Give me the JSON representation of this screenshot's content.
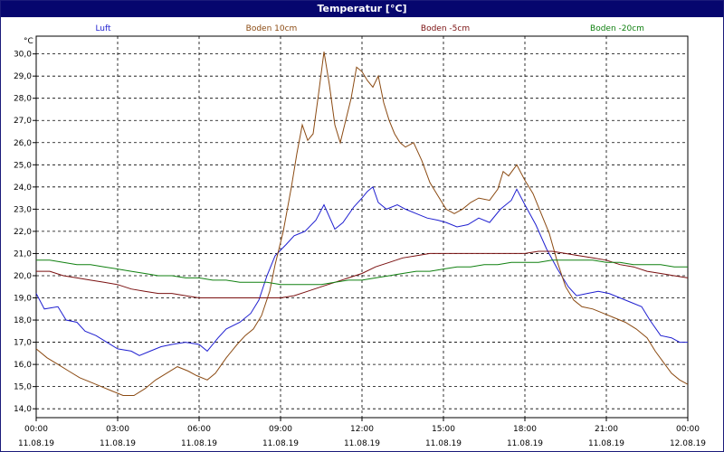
{
  "window": {
    "title": "Temperatur [°C]"
  },
  "chart_data": {
    "type": "line",
    "title": "Temperatur [°C]",
    "ylabel": "°C",
    "ylim": [
      13.6,
      30.8
    ],
    "yticks": [
      "14,0",
      "15,0",
      "16,0",
      "17,0",
      "18,0",
      "19,0",
      "20,0",
      "21,0",
      "22,0",
      "23,0",
      "24,0",
      "25,0",
      "26,0",
      "27,0",
      "28,0",
      "29,0",
      "30,0"
    ],
    "xlim": [
      0,
      24
    ],
    "xticks": [
      {
        "time": "00:00",
        "date": "11.08.19"
      },
      {
        "time": "03:00",
        "date": "11.08.19"
      },
      {
        "time": "06:00",
        "date": "11.08.19"
      },
      {
        "time": "09:00",
        "date": "11.08.19"
      },
      {
        "time": "12:00",
        "date": "11.08.19"
      },
      {
        "time": "15:00",
        "date": "11.08.19"
      },
      {
        "time": "18:00",
        "date": "11.08.19"
      },
      {
        "time": "21:00",
        "date": "11.08.19"
      },
      {
        "time": "00:00",
        "date": "12.08.19"
      }
    ],
    "grid": true,
    "legend_position": "top",
    "series": [
      {
        "name": "Luft",
        "color": "#1f1fd0",
        "points": [
          [
            0,
            19.2
          ],
          [
            0.3,
            18.5
          ],
          [
            0.8,
            18.6
          ],
          [
            1.1,
            18.0
          ],
          [
            1.5,
            17.9
          ],
          [
            1.8,
            17.5
          ],
          [
            2.2,
            17.3
          ],
          [
            2.6,
            17.0
          ],
          [
            3.0,
            16.7
          ],
          [
            3.5,
            16.6
          ],
          [
            3.8,
            16.4
          ],
          [
            4.2,
            16.6
          ],
          [
            4.6,
            16.8
          ],
          [
            5.0,
            16.9
          ],
          [
            5.5,
            17.0
          ],
          [
            6.0,
            16.9
          ],
          [
            6.3,
            16.6
          ],
          [
            6.7,
            17.2
          ],
          [
            7.0,
            17.6
          ],
          [
            7.5,
            17.9
          ],
          [
            7.9,
            18.3
          ],
          [
            8.2,
            18.9
          ],
          [
            8.5,
            20.0
          ],
          [
            8.8,
            20.9
          ],
          [
            9.2,
            21.4
          ],
          [
            9.5,
            21.8
          ],
          [
            9.9,
            22.0
          ],
          [
            10.3,
            22.5
          ],
          [
            10.6,
            23.2
          ],
          [
            11.0,
            22.1
          ],
          [
            11.3,
            22.4
          ],
          [
            11.7,
            23.1
          ],
          [
            12.0,
            23.5
          ],
          [
            12.2,
            23.8
          ],
          [
            12.4,
            24.0
          ],
          [
            12.6,
            23.3
          ],
          [
            12.9,
            23.0
          ],
          [
            13.3,
            23.2
          ],
          [
            13.6,
            23.0
          ],
          [
            14.0,
            22.8
          ],
          [
            14.4,
            22.6
          ],
          [
            14.8,
            22.5
          ],
          [
            15.1,
            22.4
          ],
          [
            15.5,
            22.2
          ],
          [
            15.9,
            22.3
          ],
          [
            16.3,
            22.6
          ],
          [
            16.7,
            22.4
          ],
          [
            17.1,
            23.0
          ],
          [
            17.5,
            23.4
          ],
          [
            17.7,
            23.9
          ],
          [
            18.0,
            23.2
          ],
          [
            18.4,
            22.3
          ],
          [
            18.8,
            21.2
          ],
          [
            19.2,
            20.3
          ],
          [
            19.6,
            19.5
          ],
          [
            19.9,
            19.1
          ],
          [
            20.3,
            19.2
          ],
          [
            20.7,
            19.3
          ],
          [
            21.1,
            19.2
          ],
          [
            21.5,
            19.0
          ],
          [
            21.9,
            18.8
          ],
          [
            22.3,
            18.6
          ],
          [
            22.6,
            18.0
          ],
          [
            23.0,
            17.3
          ],
          [
            23.4,
            17.2
          ],
          [
            23.7,
            17.0
          ],
          [
            24.0,
            17.0
          ]
        ]
      },
      {
        "name": "Boden 10cm",
        "color": "#8b4a12",
        "points": [
          [
            0,
            16.7
          ],
          [
            0.4,
            16.3
          ],
          [
            0.8,
            16.0
          ],
          [
            1.2,
            15.7
          ],
          [
            1.6,
            15.4
          ],
          [
            2.0,
            15.2
          ],
          [
            2.4,
            15.0
          ],
          [
            2.8,
            14.8
          ],
          [
            3.2,
            14.6
          ],
          [
            3.6,
            14.6
          ],
          [
            4.0,
            14.9
          ],
          [
            4.4,
            15.3
          ],
          [
            4.8,
            15.6
          ],
          [
            5.2,
            15.9
          ],
          [
            5.6,
            15.7
          ],
          [
            5.9,
            15.5
          ],
          [
            6.3,
            15.3
          ],
          [
            6.6,
            15.6
          ],
          [
            7.0,
            16.3
          ],
          [
            7.4,
            16.9
          ],
          [
            7.7,
            17.3
          ],
          [
            8.0,
            17.6
          ],
          [
            8.3,
            18.2
          ],
          [
            8.6,
            19.3
          ],
          [
            8.8,
            20.5
          ],
          [
            9.1,
            22.0
          ],
          [
            9.4,
            24.0
          ],
          [
            9.6,
            25.5
          ],
          [
            9.8,
            26.8
          ],
          [
            10.0,
            26.1
          ],
          [
            10.2,
            26.4
          ],
          [
            10.4,
            28.2
          ],
          [
            10.6,
            30.1
          ],
          [
            10.8,
            28.6
          ],
          [
            11.0,
            26.8
          ],
          [
            11.2,
            26.0
          ],
          [
            11.4,
            27.0
          ],
          [
            11.6,
            28.0
          ],
          [
            11.8,
            29.4
          ],
          [
            12.0,
            29.2
          ],
          [
            12.2,
            28.8
          ],
          [
            12.4,
            28.5
          ],
          [
            12.6,
            29.0
          ],
          [
            12.8,
            27.8
          ],
          [
            13.0,
            27.0
          ],
          [
            13.2,
            26.4
          ],
          [
            13.4,
            26.0
          ],
          [
            13.6,
            25.8
          ],
          [
            13.9,
            26.0
          ],
          [
            14.2,
            25.2
          ],
          [
            14.5,
            24.2
          ],
          [
            14.8,
            23.6
          ],
          [
            15.1,
            23.0
          ],
          [
            15.4,
            22.8
          ],
          [
            15.7,
            23.0
          ],
          [
            16.0,
            23.3
          ],
          [
            16.3,
            23.5
          ],
          [
            16.7,
            23.4
          ],
          [
            17.0,
            23.9
          ],
          [
            17.2,
            24.7
          ],
          [
            17.4,
            24.5
          ],
          [
            17.7,
            25.0
          ],
          [
            18.0,
            24.3
          ],
          [
            18.3,
            23.7
          ],
          [
            18.6,
            22.8
          ],
          [
            18.9,
            21.9
          ],
          [
            19.2,
            20.6
          ],
          [
            19.5,
            19.5
          ],
          [
            19.8,
            18.9
          ],
          [
            20.1,
            18.6
          ],
          [
            20.5,
            18.5
          ],
          [
            20.9,
            18.3
          ],
          [
            21.3,
            18.1
          ],
          [
            21.7,
            17.9
          ],
          [
            22.1,
            17.6
          ],
          [
            22.5,
            17.2
          ],
          [
            22.8,
            16.6
          ],
          [
            23.1,
            16.1
          ],
          [
            23.4,
            15.6
          ],
          [
            23.7,
            15.3
          ],
          [
            24.0,
            15.1
          ]
        ]
      },
      {
        "name": "Boden -5cm",
        "color": "#7a1010",
        "points": [
          [
            0,
            20.2
          ],
          [
            0.5,
            20.2
          ],
          [
            1.0,
            20.0
          ],
          [
            1.5,
            19.9
          ],
          [
            2.0,
            19.8
          ],
          [
            2.5,
            19.7
          ],
          [
            3.0,
            19.6
          ],
          [
            3.5,
            19.4
          ],
          [
            4.0,
            19.3
          ],
          [
            4.5,
            19.2
          ],
          [
            5.0,
            19.2
          ],
          [
            5.5,
            19.1
          ],
          [
            6.0,
            19.0
          ],
          [
            6.5,
            19.0
          ],
          [
            7.0,
            19.0
          ],
          [
            7.5,
            19.0
          ],
          [
            8.0,
            19.0
          ],
          [
            8.5,
            19.0
          ],
          [
            9.0,
            19.0
          ],
          [
            9.5,
            19.1
          ],
          [
            10.0,
            19.3
          ],
          [
            10.5,
            19.5
          ],
          [
            11.0,
            19.7
          ],
          [
            11.5,
            19.9
          ],
          [
            12.0,
            20.1
          ],
          [
            12.5,
            20.4
          ],
          [
            13.0,
            20.6
          ],
          [
            13.5,
            20.8
          ],
          [
            14.0,
            20.9
          ],
          [
            14.5,
            21.0
          ],
          [
            15.0,
            21.0
          ],
          [
            15.5,
            21.0
          ],
          [
            16.0,
            21.0
          ],
          [
            16.5,
            21.0
          ],
          [
            17.0,
            21.0
          ],
          [
            17.5,
            21.0
          ],
          [
            18.0,
            21.0
          ],
          [
            18.5,
            21.1
          ],
          [
            19.0,
            21.1
          ],
          [
            19.5,
            21.0
          ],
          [
            20.0,
            20.9
          ],
          [
            20.5,
            20.8
          ],
          [
            21.0,
            20.7
          ],
          [
            21.5,
            20.5
          ],
          [
            22.0,
            20.4
          ],
          [
            22.5,
            20.2
          ],
          [
            23.0,
            20.1
          ],
          [
            23.5,
            20.0
          ],
          [
            24.0,
            19.9
          ]
        ]
      },
      {
        "name": "Boden -20cm",
        "color": "#108010",
        "points": [
          [
            0,
            20.7
          ],
          [
            0.5,
            20.7
          ],
          [
            1.0,
            20.6
          ],
          [
            1.5,
            20.5
          ],
          [
            2.0,
            20.5
          ],
          [
            2.5,
            20.4
          ],
          [
            3.0,
            20.3
          ],
          [
            3.5,
            20.2
          ],
          [
            4.0,
            20.1
          ],
          [
            4.5,
            20.0
          ],
          [
            5.0,
            20.0
          ],
          [
            5.5,
            19.9
          ],
          [
            6.0,
            19.9
          ],
          [
            6.5,
            19.8
          ],
          [
            7.0,
            19.8
          ],
          [
            7.5,
            19.7
          ],
          [
            8.0,
            19.7
          ],
          [
            8.5,
            19.7
          ],
          [
            9.0,
            19.6
          ],
          [
            9.5,
            19.6
          ],
          [
            10.0,
            19.6
          ],
          [
            10.5,
            19.6
          ],
          [
            11.0,
            19.7
          ],
          [
            11.5,
            19.8
          ],
          [
            12.0,
            19.8
          ],
          [
            12.5,
            19.9
          ],
          [
            13.0,
            20.0
          ],
          [
            13.5,
            20.1
          ],
          [
            14.0,
            20.2
          ],
          [
            14.5,
            20.2
          ],
          [
            15.0,
            20.3
          ],
          [
            15.5,
            20.4
          ],
          [
            16.0,
            20.4
          ],
          [
            16.5,
            20.5
          ],
          [
            17.0,
            20.5
          ],
          [
            17.5,
            20.6
          ],
          [
            18.0,
            20.6
          ],
          [
            18.5,
            20.6
          ],
          [
            19.0,
            20.7
          ],
          [
            19.5,
            20.7
          ],
          [
            20.0,
            20.7
          ],
          [
            20.5,
            20.7
          ],
          [
            21.0,
            20.6
          ],
          [
            21.5,
            20.6
          ],
          [
            22.0,
            20.5
          ],
          [
            22.5,
            20.5
          ],
          [
            23.0,
            20.5
          ],
          [
            23.5,
            20.4
          ],
          [
            24.0,
            20.4
          ]
        ]
      }
    ]
  }
}
